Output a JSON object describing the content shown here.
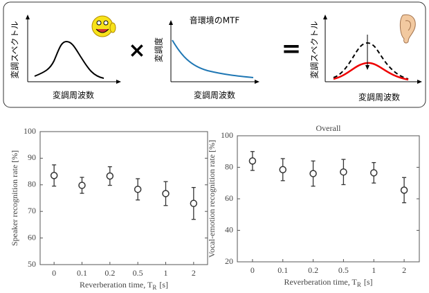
{
  "diagram": {
    "panels": [
      {
        "ylabel": "変調スペクトル",
        "xlabel": "変調周波数"
      },
      {
        "title": "音環境のMTF",
        "ylabel": "変調度",
        "xlabel": "変調周波数"
      },
      {
        "ylabel": "変調スペクトル",
        "xlabel": "変調周波数"
      }
    ],
    "operators": [
      "×",
      "="
    ]
  },
  "chart_data": [
    {
      "type": "errorbar",
      "ylabel": "Speaker recognition rate [%]",
      "xlabel": "Reverberation time,  T",
      "xlabel_sub": "R",
      "xlabel_unit": "[s]",
      "categories": [
        "0",
        "0.1",
        "0.2",
        "0.5",
        "1",
        "2"
      ],
      "values": [
        83.5,
        79.8,
        83.3,
        78.3,
        76.7,
        73.0
      ],
      "errors": [
        4,
        3,
        3.5,
        4,
        4.5,
        6
      ],
      "color": "#333333",
      "ylim": [
        50,
        100
      ],
      "yticks": [
        50,
        60,
        70,
        80,
        90,
        100
      ]
    },
    {
      "type": "errorbar",
      "title": "Overall",
      "ylabel": "Vocal-emotion recognition rate [%]",
      "xlabel": "Reverberation time,  T",
      "xlabel_sub": "R",
      "xlabel_unit": "[s]",
      "categories": [
        "0",
        "0.1",
        "0.2",
        "0.5",
        "1",
        "2"
      ],
      "values": [
        84,
        78.5,
        76,
        77,
        76.5,
        65.5
      ],
      "errors": [
        6,
        7,
        8,
        8,
        6.5,
        8
      ],
      "color": "#333333",
      "ylim": [
        20,
        100
      ],
      "yticks": [
        20,
        40,
        60,
        80,
        100
      ]
    }
  ]
}
